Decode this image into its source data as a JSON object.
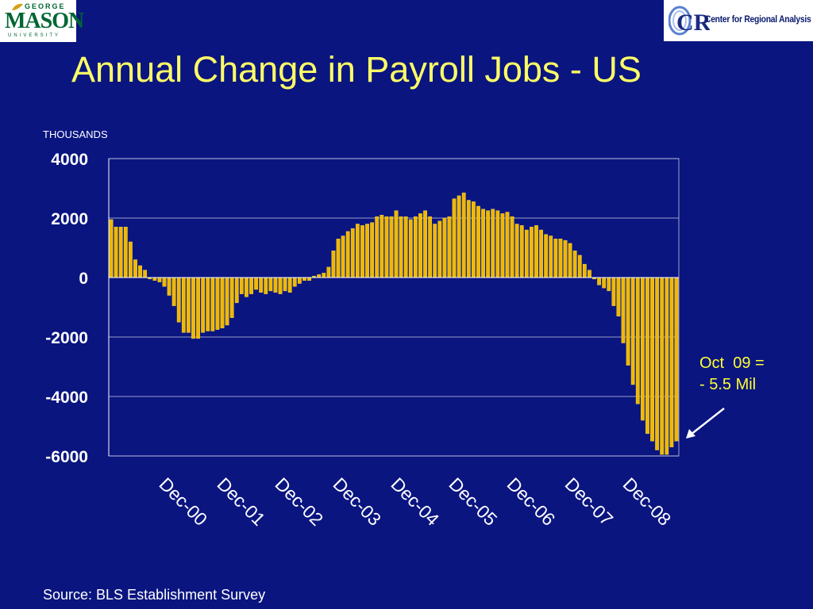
{
  "logos": {
    "left": {
      "name": "George Mason University",
      "line1": "GEORGE",
      "line2": "MASON",
      "line3": "UNIVERSITY"
    },
    "right": {
      "mark": "CRA",
      "text": "Center for Regional Analysis"
    }
  },
  "slide": {
    "title": "Annual Change in Payroll Jobs - US",
    "unit_label": "THOUSANDS",
    "annotation": "Oct  09 =\n- 5.5 Mil",
    "source": "Source: BLS Establishment Survey"
  },
  "colors": {
    "background": "#0a1580",
    "title": "#ffff66",
    "bar_fill": "#f0b800",
    "bar_highlight": "#ffe14a",
    "gridline": "#c8c8e0",
    "axis_text": "#ffffff",
    "annotation": "#ffff33"
  },
  "chart_data": {
    "type": "bar",
    "title": "Annual Change in Payroll Jobs - US",
    "ylabel": "THOUSANDS",
    "ylim": [
      -6000,
      4000
    ],
    "yticks": [
      4000,
      2000,
      0,
      -2000,
      -4000,
      -6000
    ],
    "ytick_labels": [
      "4000",
      "2000",
      "0",
      "-2000",
      "-4000",
      "-6000"
    ],
    "grid": true,
    "x_start": "Jan-00",
    "x_end": "Oct-09",
    "x_tick_labels": [
      "Dec-00",
      "Dec-01",
      "Dec-02",
      "Dec-03",
      "Dec-04",
      "Dec-05",
      "Dec-06",
      "Dec-07",
      "Dec-08"
    ],
    "series": [
      {
        "values": [
          1950,
          1700,
          1700,
          1700,
          1200,
          600,
          400,
          250,
          -50,
          -100,
          -150,
          -300,
          -600,
          -950,
          -1500,
          -1850,
          -1850,
          -2050,
          -2050,
          -1850,
          -1800,
          -1800,
          -1750,
          -1700,
          -1600,
          -1350,
          -850,
          -550,
          -650,
          -550,
          -400,
          -500,
          -550,
          -450,
          -500,
          -550,
          -450,
          -500,
          -300,
          -200,
          -100,
          -100,
          50,
          100,
          150,
          350,
          900,
          1300,
          1400,
          1550,
          1650,
          1800,
          1750,
          1800,
          1850,
          2050,
          2100,
          2050,
          2050,
          2250,
          2050,
          2050,
          1950,
          2050,
          2150,
          2250,
          2050,
          1800,
          1900,
          2000,
          2050,
          2650,
          2750,
          2850,
          2600,
          2550,
          2400,
          2300,
          2250,
          2300,
          2250,
          2150,
          2200,
          2050,
          1800,
          1750,
          1600,
          1700,
          1750,
          1600,
          1450,
          1400,
          1300,
          1300,
          1250,
          1150,
          900,
          750,
          450,
          250,
          -50,
          -250,
          -350,
          -450,
          -950,
          -1300,
          -2200,
          -2950,
          -3600,
          -4250,
          -4800,
          -5250,
          -5500,
          -5800,
          -5950,
          -5950,
          -5700,
          -5500
        ]
      }
    ]
  }
}
